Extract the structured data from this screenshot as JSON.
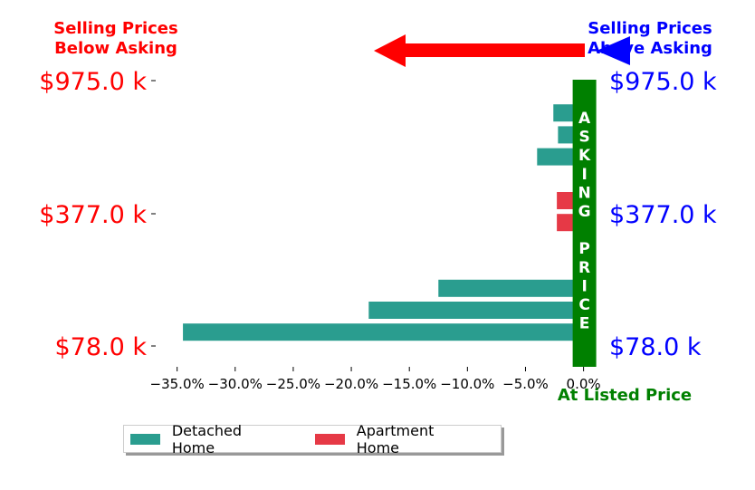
{
  "annotations": {
    "below": [
      "Selling Prices",
      "Below Asking"
    ],
    "above": [
      "Selling Prices",
      "Above Asking"
    ],
    "listed": "At Listed Price",
    "asking_letters": [
      "A",
      "S",
      "K",
      "I",
      "N",
      "G",
      "",
      "P",
      "R",
      "I",
      "C",
      "E"
    ]
  },
  "colors": {
    "detached": "#2a9d8f",
    "apartment": "#e63946",
    "asking_bar": "#008000",
    "below": "#ff0000",
    "above": "#0000ff"
  },
  "chart_data": {
    "type": "bar",
    "orientation": "horizontal",
    "title": "",
    "xlabel": "",
    "ylabel": "",
    "xlim": [
      -37,
      1.2
    ],
    "x_ticks": [
      -35,
      -30,
      -25,
      -20,
      -15,
      -10,
      -5,
      0
    ],
    "x_tick_labels": [
      "−35.0%",
      "−30.0%",
      "−25.0%",
      "−20.0%",
      "−15.0%",
      "−10.0%",
      "−5.0%",
      "0.0%"
    ],
    "y_tick_labels_left": [
      "$975.0 k",
      "$377.0 k",
      "$78.0 k"
    ],
    "y_tick_labels_right": [
      "$975.0 k",
      "$377.0 k",
      "$78.0 k"
    ],
    "rows": [
      {
        "series": "Detached Home",
        "value": 0.5
      },
      {
        "series": "Detached Home",
        "value": -2.6
      },
      {
        "series": "Detached Home",
        "value": -2.2
      },
      {
        "series": "Detached Home",
        "value": -4.0
      },
      {
        "series": "Detached Home",
        "value": 0.5
      },
      {
        "series": "Apartment Home",
        "value": -2.3
      },
      {
        "series": "Apartment Home",
        "value": -2.3
      },
      {
        "series": "Detached Home",
        "value": 0.5
      },
      {
        "series": "Detached Home",
        "value": 0.5
      },
      {
        "series": "Detached Home",
        "value": -12.5
      },
      {
        "series": "Detached Home",
        "value": -18.5
      },
      {
        "series": "Detached Home",
        "value": -34.5
      }
    ],
    "legend": [
      "Detached Home",
      "Apartment Home"
    ],
    "legend_position": "bottom-center"
  }
}
